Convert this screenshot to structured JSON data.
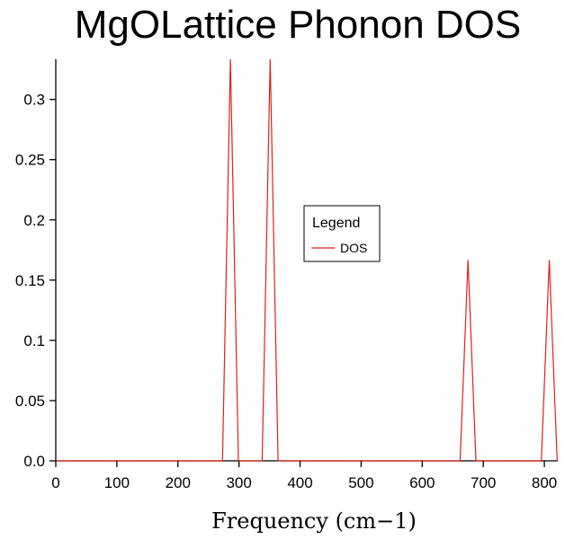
{
  "chart_data": {
    "type": "line",
    "title": "MgOLattice Phonon DOS",
    "xlabel": "Frequency (cm−1)",
    "ylabel": "",
    "xlim": [
      0,
      822
    ],
    "ylim": [
      0,
      0.3333
    ],
    "xticks": [
      0,
      100,
      200,
      300,
      400,
      500,
      600,
      700,
      800
    ],
    "xtick_labels": [
      "0",
      "100",
      "200",
      "300",
      "400",
      "500",
      "600",
      "700",
      "800"
    ],
    "yticks": [
      0,
      0.05,
      0.1,
      0.15,
      0.2,
      0.25,
      0.3
    ],
    "ytick_labels": [
      "0.0",
      "0.05",
      "0.1",
      "0.15",
      "0.2",
      "0.25",
      "0.3"
    ],
    "grid": false,
    "legend": {
      "title": "Legend",
      "position": "center-right"
    },
    "series": [
      {
        "name": "DOS",
        "color": "#e0201b",
        "x": [
          0,
          273,
          286,
          299,
          338,
          351,
          364,
          662,
          675,
          688,
          795,
          808,
          821
        ],
        "y": [
          0,
          0,
          0.3333,
          0,
          0,
          0.3333,
          0,
          0,
          0.1667,
          0,
          0,
          0.1667,
          0
        ]
      }
    ]
  }
}
